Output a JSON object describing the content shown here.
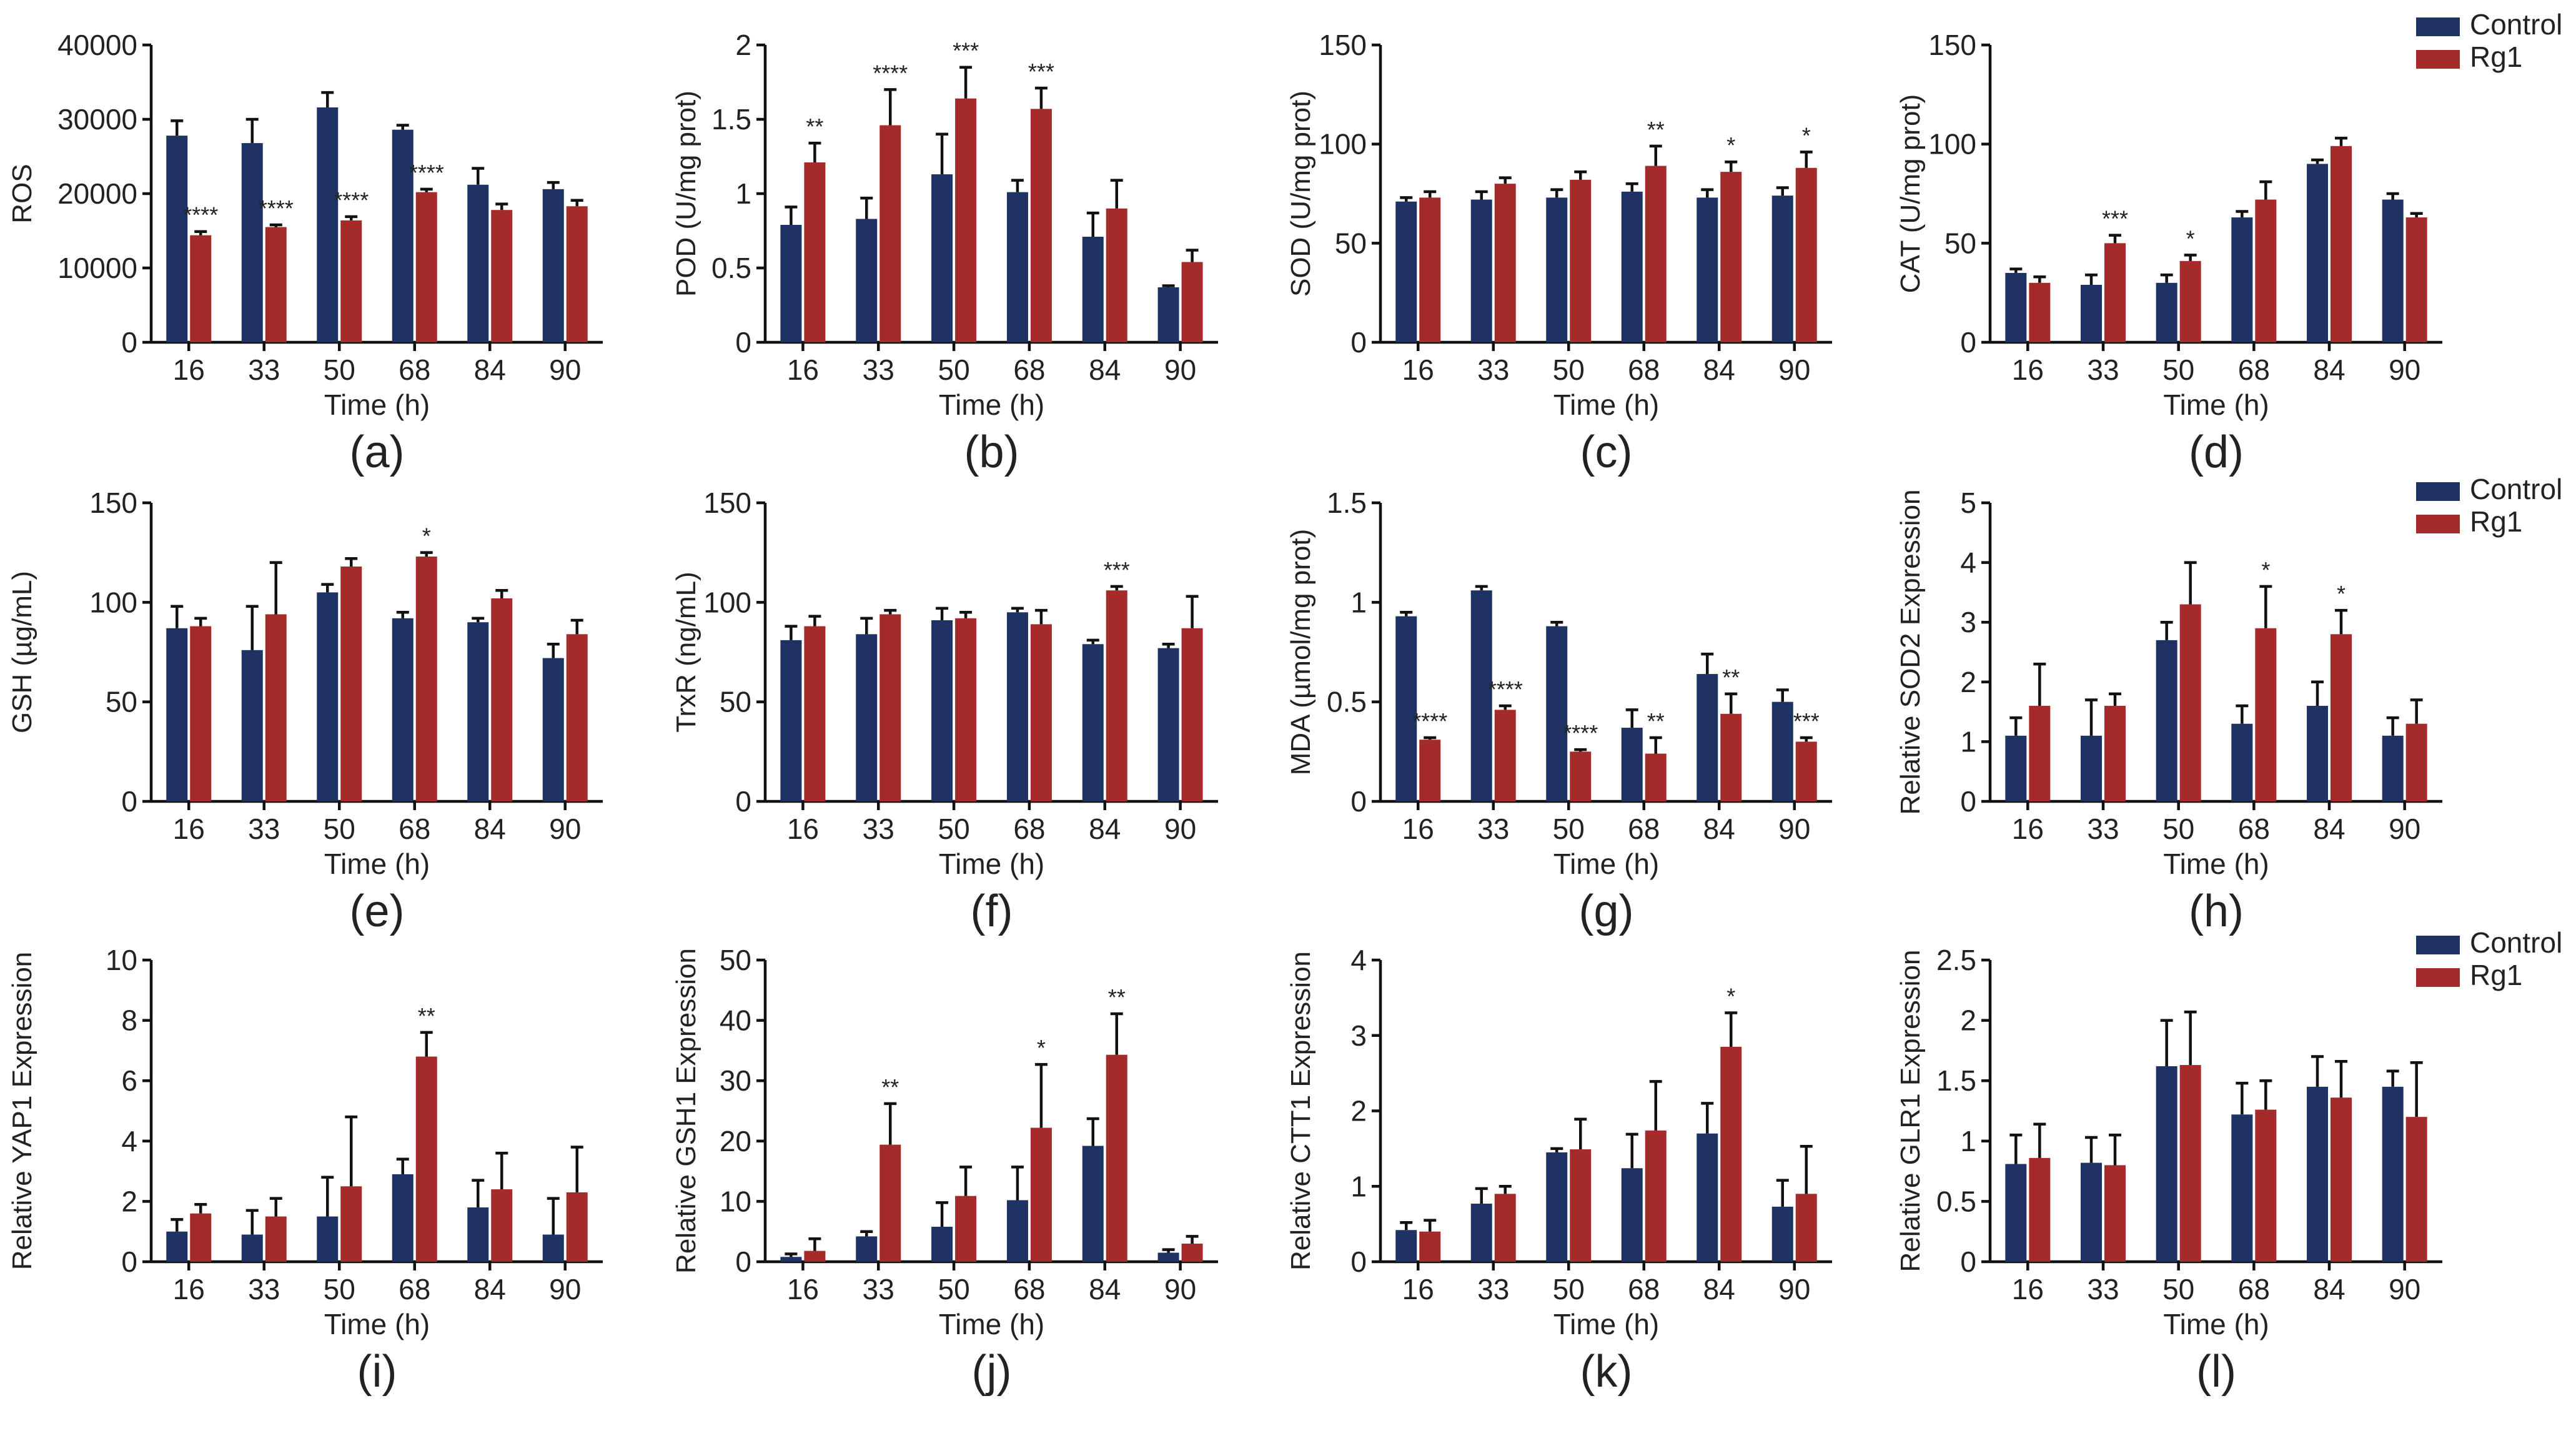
{
  "colors": {
    "control": "#1F3264",
    "rg1": "#A52A2A",
    "axis": "#111111",
    "text": "#222222"
  },
  "legends": [
    {
      "control_label": "Control",
      "rg1_label": "Rg1"
    },
    {
      "control_label": "Control",
      "rg1_label": "Rg1"
    },
    {
      "control_label": "Control",
      "rg1_label": "Rg1"
    }
  ],
  "chart_data": [
    {
      "panel_label": "(a)",
      "type": "bar",
      "ylabel": "ROS",
      "xlabel": "Time (h)",
      "categories": [
        "16",
        "33",
        "50",
        "68",
        "84",
        "90"
      ],
      "ylim": [
        0,
        40000
      ],
      "yticks": [
        0,
        10000,
        20000,
        30000,
        40000
      ],
      "ytick_labels": [
        "0",
        "10000",
        "20000",
        "30000",
        "40000"
      ],
      "series": [
        {
          "name": "Control",
          "values": [
            27800,
            26800,
            31600,
            28600,
            21200,
            20600
          ],
          "errors": [
            2000,
            3200,
            2000,
            600,
            2200,
            900
          ]
        },
        {
          "name": "Rg1",
          "values": [
            14400,
            15500,
            16400,
            20200,
            17800,
            18300
          ],
          "errors": [
            500,
            300,
            500,
            400,
            800,
            800
          ]
        }
      ],
      "significance": [
        "****",
        "****",
        "****",
        "****",
        "",
        ""
      ]
    },
    {
      "panel_label": "(b)",
      "type": "bar",
      "ylabel": "POD (U/mg prot)",
      "xlabel": "Time (h)",
      "categories": [
        "16",
        "33",
        "50",
        "68",
        "84",
        "90"
      ],
      "ylim": [
        0,
        2
      ],
      "yticks": [
        0,
        0.5,
        1,
        1.5,
        2
      ],
      "ytick_labels": [
        "0",
        "0.5",
        "1",
        "1.5",
        "2"
      ],
      "series": [
        {
          "name": "Control",
          "values": [
            0.79,
            0.83,
            1.13,
            1.01,
            0.71,
            0.37
          ],
          "errors": [
            0.12,
            0.14,
            0.27,
            0.08,
            0.16,
            0.01
          ]
        },
        {
          "name": "Rg1",
          "values": [
            1.21,
            1.46,
            1.64,
            1.57,
            0.9,
            0.54
          ],
          "errors": [
            0.13,
            0.24,
            0.21,
            0.14,
            0.19,
            0.08
          ]
        }
      ],
      "significance": [
        "**",
        "****",
        "***",
        "***",
        "",
        ""
      ]
    },
    {
      "panel_label": "(c)",
      "type": "bar",
      "ylabel": "SOD (U/mg prot)",
      "xlabel": "Time (h)",
      "categories": [
        "16",
        "33",
        "50",
        "68",
        "84",
        "90"
      ],
      "ylim": [
        0,
        150
      ],
      "yticks": [
        0,
        50,
        100,
        150
      ],
      "ytick_labels": [
        "0",
        "50",
        "100",
        "150"
      ],
      "series": [
        {
          "name": "Control",
          "values": [
            71,
            72,
            73,
            76,
            73,
            74
          ],
          "errors": [
            2,
            4,
            4,
            4,
            4,
            4
          ]
        },
        {
          "name": "Rg1",
          "values": [
            73,
            80,
            82,
            89,
            86,
            88
          ],
          "errors": [
            3,
            3,
            4,
            10,
            5,
            8
          ]
        }
      ],
      "significance": [
        "",
        "",
        "",
        "**",
        "*",
        "*"
      ]
    },
    {
      "panel_label": "(d)",
      "type": "bar",
      "ylabel": "CAT (U/mg prot)",
      "xlabel": "Time (h)",
      "categories": [
        "16",
        "33",
        "50",
        "68",
        "84",
        "90"
      ],
      "ylim": [
        0,
        150
      ],
      "yticks": [
        0,
        50,
        100,
        150
      ],
      "ytick_labels": [
        "0",
        "50",
        "100",
        "150"
      ],
      "series": [
        {
          "name": "Control",
          "values": [
            35,
            29,
            30,
            63,
            90,
            72
          ],
          "errors": [
            2,
            5,
            4,
            3,
            2,
            3
          ]
        },
        {
          "name": "Rg1",
          "values": [
            30,
            50,
            41,
            72,
            99,
            63
          ],
          "errors": [
            3,
            4,
            3,
            9,
            4,
            2
          ]
        }
      ],
      "significance": [
        "",
        "***",
        "*",
        "",
        "",
        ""
      ]
    },
    {
      "panel_label": "(e)",
      "type": "bar",
      "ylabel": "GSH (µg/mL)",
      "xlabel": "Time (h)",
      "categories": [
        "16",
        "33",
        "50",
        "68",
        "84",
        "90"
      ],
      "ylim": [
        0,
        150
      ],
      "yticks": [
        0,
        50,
        100,
        150
      ],
      "ytick_labels": [
        "0",
        "50",
        "100",
        "150"
      ],
      "series": [
        {
          "name": "Control",
          "values": [
            87,
            76,
            105,
            92,
            90,
            72
          ],
          "errors": [
            11,
            22,
            4,
            3,
            2,
            7
          ]
        },
        {
          "name": "Rg1",
          "values": [
            88,
            94,
            118,
            123,
            102,
            84
          ],
          "errors": [
            4,
            26,
            4,
            2,
            4,
            7
          ]
        }
      ],
      "significance": [
        "",
        "",
        "",
        "*",
        "",
        ""
      ]
    },
    {
      "panel_label": "(f)",
      "type": "bar",
      "ylabel": "TrxR (ng/mL)",
      "xlabel": "Time (h)",
      "categories": [
        "16",
        "33",
        "50",
        "68",
        "84",
        "90"
      ],
      "ylim": [
        0,
        150
      ],
      "yticks": [
        0,
        50,
        100,
        150
      ],
      "ytick_labels": [
        "0",
        "50",
        "100",
        "150"
      ],
      "series": [
        {
          "name": "Control",
          "values": [
            81,
            84,
            91,
            95,
            79,
            77
          ],
          "errors": [
            7,
            8,
            6,
            2,
            2,
            2
          ]
        },
        {
          "name": "Rg1",
          "values": [
            88,
            94,
            92,
            89,
            106,
            87
          ],
          "errors": [
            5,
            2,
            3,
            7,
            2,
            16
          ]
        }
      ],
      "significance": [
        "",
        "",
        "",
        "",
        "***",
        ""
      ]
    },
    {
      "panel_label": "(g)",
      "type": "bar",
      "ylabel": "MDA (µmol/mg prot)",
      "xlabel": "Time (h)",
      "categories": [
        "16",
        "33",
        "50",
        "68",
        "84",
        "90"
      ],
      "ylim": [
        0,
        1.5
      ],
      "yticks": [
        0,
        0.5,
        1,
        1.5
      ],
      "ytick_labels": [
        "0",
        "0.5",
        "1",
        "1.5"
      ],
      "series": [
        {
          "name": "Control",
          "values": [
            0.93,
            1.06,
            0.88,
            0.37,
            0.64,
            0.5
          ],
          "errors": [
            0.02,
            0.02,
            0.02,
            0.09,
            0.1,
            0.06
          ]
        },
        {
          "name": "Rg1",
          "values": [
            0.31,
            0.46,
            0.25,
            0.24,
            0.44,
            0.3
          ],
          "errors": [
            0.01,
            0.02,
            0.01,
            0.08,
            0.1,
            0.02
          ]
        }
      ],
      "significance": [
        "****",
        "****",
        "****",
        "**",
        "**",
        "***"
      ]
    },
    {
      "panel_label": "(h)",
      "type": "bar",
      "ylabel": "Relative SOD2 Expression",
      "xlabel": "Time (h)",
      "categories": [
        "16",
        "33",
        "50",
        "68",
        "84",
        "90"
      ],
      "ylim": [
        0,
        5
      ],
      "yticks": [
        0,
        1,
        2,
        3,
        4,
        5
      ],
      "ytick_labels": [
        "0",
        "1",
        "2",
        "3",
        "4",
        "5"
      ],
      "series": [
        {
          "name": "Control",
          "values": [
            1.1,
            1.1,
            2.7,
            1.3,
            1.6,
            1.1
          ],
          "errors": [
            0.3,
            0.6,
            0.3,
            0.3,
            0.4,
            0.3
          ]
        },
        {
          "name": "Rg1",
          "values": [
            1.6,
            1.6,
            3.3,
            2.9,
            2.8,
            1.3
          ],
          "errors": [
            0.7,
            0.2,
            0.7,
            0.7,
            0.4,
            0.4
          ]
        }
      ],
      "significance": [
        "",
        "",
        "",
        "*",
        "*",
        ""
      ]
    },
    {
      "panel_label": "(i)",
      "type": "bar",
      "ylabel": "Relative YAP1 Expression",
      "xlabel": "Time (h)",
      "categories": [
        "16",
        "33",
        "50",
        "68",
        "84",
        "90"
      ],
      "ylim": [
        0,
        10
      ],
      "yticks": [
        0,
        2,
        4,
        6,
        8,
        10
      ],
      "ytick_labels": [
        "0",
        "2",
        "4",
        "6",
        "8",
        "10"
      ],
      "series": [
        {
          "name": "Control",
          "values": [
            1.0,
            0.9,
            1.5,
            2.9,
            1.8,
            0.9
          ],
          "errors": [
            0.4,
            0.8,
            1.3,
            0.5,
            0.9,
            1.2
          ]
        },
        {
          "name": "Rg1",
          "values": [
            1.6,
            1.5,
            2.5,
            6.8,
            2.4,
            2.3
          ],
          "errors": [
            0.3,
            0.6,
            2.3,
            0.8,
            1.2,
            1.5
          ]
        }
      ],
      "significance": [
        "",
        "",
        "",
        "**",
        "",
        ""
      ]
    },
    {
      "panel_label": "(j)",
      "type": "bar",
      "ylabel": "Relative GSH1 Expression",
      "xlabel": "Time (h)",
      "categories": [
        "16",
        "33",
        "50",
        "68",
        "84",
        "90"
      ],
      "ylim": [
        0,
        50
      ],
      "yticks": [
        0,
        10,
        20,
        30,
        40,
        50
      ],
      "ytick_labels": [
        "0",
        "10",
        "20",
        "30",
        "40",
        "50"
      ],
      "series": [
        {
          "name": "Control",
          "values": [
            0.8,
            4.2,
            5.8,
            10.2,
            19.2,
            1.5
          ],
          "errors": [
            0.5,
            0.8,
            4.0,
            5.5,
            4.5,
            0.5
          ]
        },
        {
          "name": "Rg1",
          "values": [
            1.8,
            19.4,
            10.9,
            22.2,
            34.3,
            3.0
          ],
          "errors": [
            2.0,
            6.8,
            4.8,
            10.5,
            6.8,
            1.2
          ]
        }
      ],
      "significance": [
        "",
        "**",
        "",
        "*",
        "**",
        ""
      ]
    },
    {
      "panel_label": "(k)",
      "type": "bar",
      "ylabel": "Relative CTT1 Expression",
      "xlabel": "Time (h)",
      "categories": [
        "16",
        "33",
        "50",
        "68",
        "84",
        "90"
      ],
      "ylim": [
        0,
        4
      ],
      "yticks": [
        0,
        1,
        2,
        3,
        4
      ],
      "ytick_labels": [
        "0",
        "1",
        "2",
        "3",
        "4"
      ],
      "series": [
        {
          "name": "Control",
          "values": [
            0.42,
            0.77,
            1.45,
            1.24,
            1.7,
            0.73
          ],
          "errors": [
            0.1,
            0.2,
            0.05,
            0.45,
            0.4,
            0.35
          ]
        },
        {
          "name": "Rg1",
          "values": [
            0.4,
            0.9,
            1.49,
            1.74,
            2.85,
            0.9
          ],
          "errors": [
            0.15,
            0.1,
            0.4,
            0.65,
            0.45,
            0.63
          ]
        }
      ],
      "significance": [
        "",
        "",
        "",
        "",
        "*",
        ""
      ]
    },
    {
      "panel_label": "(l)",
      "type": "bar",
      "ylabel": "Relative GLR1 Expression",
      "xlabel": "Time (h)",
      "categories": [
        "16",
        "33",
        "50",
        "68",
        "84",
        "90"
      ],
      "ylim": [
        0,
        2.5
      ],
      "yticks": [
        0,
        0.5,
        1,
        1.5,
        2,
        2.5
      ],
      "ytick_labels": [
        "0",
        "0.5",
        "1",
        "1.5",
        "2",
        "2.5"
      ],
      "series": [
        {
          "name": "Control",
          "values": [
            0.81,
            0.82,
            1.62,
            1.22,
            1.45,
            1.45
          ],
          "errors": [
            0.24,
            0.21,
            0.38,
            0.26,
            0.25,
            0.13
          ]
        },
        {
          "name": "Rg1",
          "values": [
            0.86,
            0.8,
            1.63,
            1.26,
            1.36,
            1.2
          ],
          "errors": [
            0.28,
            0.25,
            0.44,
            0.24,
            0.3,
            0.45
          ]
        }
      ],
      "significance": [
        "",
        "",
        "",
        "",
        "",
        ""
      ]
    }
  ]
}
